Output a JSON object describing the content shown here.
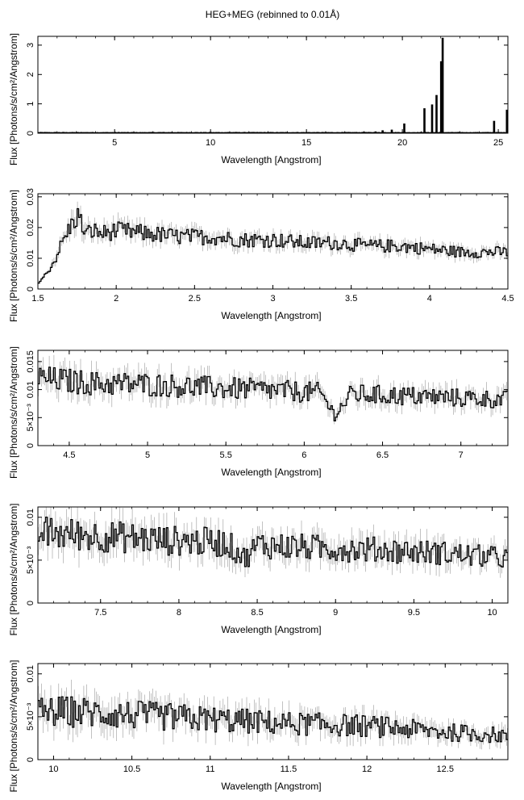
{
  "figure_title": "HEG+MEG (rebinned to 0.01Å)",
  "chart_data": [
    {
      "type": "line",
      "title": "HEG+MEG (rebinned to 0.01Å)",
      "xlabel": "Wavelength [Angstrom]",
      "ylabel": "Flux [Photons/s/cm²/Angstrom]",
      "xlim": [
        1.0,
        25.5
      ],
      "ylim": [
        0,
        3.3
      ],
      "xticks": [
        "5",
        "10",
        "15",
        "20",
        "25"
      ],
      "yticks": [
        "0",
        "1",
        "2",
        "3"
      ],
      "xtick_values": [
        5,
        10,
        15,
        20,
        25
      ],
      "ytick_values": [
        0,
        1,
        2,
        3
      ],
      "series": [
        {
          "style": "histogram with error bars",
          "points": [
            [
              1.0,
              0.02
            ],
            [
              2.0,
              0.02
            ],
            [
              3.0,
              0.02
            ],
            [
              4.0,
              0.015
            ],
            [
              5.0,
              0.012
            ],
            [
              6.0,
              0.01
            ],
            [
              7.0,
              0.009
            ],
            [
              8.0,
              0.008
            ],
            [
              9.0,
              0.007
            ],
            [
              10.0,
              0.006
            ],
            [
              11.0,
              0.006
            ],
            [
              12.0,
              0.007
            ],
            [
              13.0,
              0.006
            ],
            [
              14.0,
              0.008
            ],
            [
              15.0,
              0.008
            ],
            [
              16.0,
              0.01
            ],
            [
              17.0,
              0.012
            ],
            [
              18.0,
              0.02
            ],
            [
              18.97,
              0.06
            ],
            [
              19.45,
              0.11
            ],
            [
              20.0,
              0.08
            ],
            [
              20.1,
              0.33
            ],
            [
              21.0,
              0.05
            ],
            [
              21.2,
              0.85
            ],
            [
              21.6,
              0.98
            ],
            [
              21.8,
              1.3
            ],
            [
              22.0,
              2.45
            ],
            [
              22.1,
              3.25
            ],
            [
              23.0,
              0.06
            ],
            [
              24.0,
              0.05
            ],
            [
              24.78,
              0.42
            ],
            [
              25.5,
              0.8
            ]
          ]
        }
      ]
    },
    {
      "type": "line",
      "xlabel": "Wavelength [Angstrom]",
      "ylabel": "Flux [Photons/s/cm²/Angstrom]",
      "xlim": [
        1.5,
        4.5
      ],
      "ylim": [
        0,
        0.031
      ],
      "xticks": [
        "1.5",
        "2",
        "2.5",
        "3",
        "3.5",
        "4",
        "4.5"
      ],
      "yticks": [
        "0",
        "0.01",
        "0.02",
        "0.03"
      ],
      "xtick_values": [
        1.5,
        2,
        2.5,
        3,
        3.5,
        4,
        4.5
      ],
      "ytick_values": [
        0,
        0.01,
        0.02,
        0.03
      ],
      "series": [
        {
          "style": "histogram with error bars",
          "points": [
            [
              1.5,
              0.002
            ],
            [
              1.55,
              0.005
            ],
            [
              1.6,
              0.009
            ],
            [
              1.65,
              0.015
            ],
            [
              1.7,
              0.02
            ],
            [
              1.75,
              0.024
            ],
            [
              1.8,
              0.018
            ],
            [
              1.85,
              0.019
            ],
            [
              1.9,
              0.018
            ],
            [
              2.0,
              0.019
            ],
            [
              2.2,
              0.018
            ],
            [
              2.4,
              0.017
            ],
            [
              2.6,
              0.017
            ],
            [
              2.8,
              0.016
            ],
            [
              3.0,
              0.016
            ],
            [
              3.2,
              0.015
            ],
            [
              3.4,
              0.015
            ],
            [
              3.6,
              0.014
            ],
            [
              3.8,
              0.014
            ],
            [
              4.0,
              0.013
            ],
            [
              4.2,
              0.012
            ],
            [
              4.4,
              0.012
            ],
            [
              4.5,
              0.012
            ]
          ]
        }
      ]
    },
    {
      "type": "line",
      "xlabel": "Wavelength [Angstrom]",
      "ylabel": "Flux [Photons/s/cm²/Angstrom]",
      "xlim": [
        4.3,
        7.3
      ],
      "ylim": [
        0,
        0.017
      ],
      "xticks": [
        "4.5",
        "5",
        "5.5",
        "6",
        "6.5",
        "7"
      ],
      "yticks": [
        "0",
        "5×10⁻³",
        "0.01",
        "0.015"
      ],
      "xtick_values": [
        4.5,
        5,
        5.5,
        6,
        6.5,
        7
      ],
      "ytick_values": [
        0,
        0.005,
        0.01,
        0.015
      ],
      "series": [
        {
          "style": "histogram with error bars",
          "points": [
            [
              4.3,
              0.012
            ],
            [
              4.5,
              0.0115
            ],
            [
              4.7,
              0.011
            ],
            [
              4.9,
              0.011
            ],
            [
              5.1,
              0.0108
            ],
            [
              5.3,
              0.0105
            ],
            [
              5.5,
              0.0102
            ],
            [
              5.7,
              0.01
            ],
            [
              5.9,
              0.0097
            ],
            [
              6.1,
              0.0094
            ],
            [
              6.19,
              0.0055
            ],
            [
              6.3,
              0.0092
            ],
            [
              6.5,
              0.009
            ],
            [
              6.7,
              0.0088
            ],
            [
              6.9,
              0.0086
            ],
            [
              7.1,
              0.0084
            ],
            [
              7.3,
              0.0082
            ]
          ]
        }
      ]
    },
    {
      "type": "line",
      "xlabel": "Wavelength [Angstrom]",
      "ylabel": "Flux [Photons/s/cm²/Angstrom]",
      "xlim": [
        7.1,
        10.1
      ],
      "ylim": [
        0,
        0.0112
      ],
      "xticks": [
        "7.5",
        "8",
        "8.5",
        "9",
        "9.5",
        "10"
      ],
      "yticks": [
        "0",
        "5×10⁻³",
        "0.01"
      ],
      "xtick_values": [
        7.5,
        8,
        8.5,
        9,
        9.5,
        10
      ],
      "ytick_values": [
        0,
        0.005,
        0.01
      ],
      "series": [
        {
          "style": "histogram with error bars",
          "points": [
            [
              7.1,
              0.0082
            ],
            [
              7.3,
              0.008
            ],
            [
              7.5,
              0.0078
            ],
            [
              7.7,
              0.0076
            ],
            [
              7.9,
              0.0073
            ],
            [
              8.1,
              0.0072
            ],
            [
              8.3,
              0.007
            ],
            [
              8.42,
              0.0052
            ],
            [
              8.5,
              0.0068
            ],
            [
              8.7,
              0.0066
            ],
            [
              8.9,
              0.0064
            ],
            [
              9.1,
              0.0063
            ],
            [
              9.3,
              0.0062
            ],
            [
              9.5,
              0.006
            ],
            [
              9.7,
              0.0058
            ],
            [
              9.9,
              0.0055
            ],
            [
              10.1,
              0.0052
            ]
          ]
        }
      ]
    },
    {
      "type": "line",
      "xlabel": "Wavelength [Angstrom]",
      "ylabel": "Flux [Photons/s/cm²/Angstrom]",
      "xlim": [
        9.9,
        12.9
      ],
      "ylim": [
        0,
        0.0112
      ],
      "xticks": [
        "10",
        "10.5",
        "11",
        "11.5",
        "12",
        "12.5"
      ],
      "yticks": [
        "0",
        "5×10⁻³",
        "0.01"
      ],
      "xtick_values": [
        10,
        10.5,
        11,
        11.5,
        12,
        12.5
      ],
      "ytick_values": [
        0,
        0.005,
        0.01
      ],
      "series": [
        {
          "style": "histogram with error bars",
          "points": [
            [
              9.9,
              0.0055
            ],
            [
              10.1,
              0.0056
            ],
            [
              10.3,
              0.0054
            ],
            [
              10.5,
              0.0052
            ],
            [
              10.7,
              0.005
            ],
            [
              10.9,
              0.0048
            ],
            [
              11.1,
              0.0046
            ],
            [
              11.3,
              0.0044
            ],
            [
              11.5,
              0.0042
            ],
            [
              11.7,
              0.0041
            ],
            [
              11.9,
              0.004
            ],
            [
              12.1,
              0.0038
            ],
            [
              12.3,
              0.0035
            ],
            [
              12.5,
              0.0032
            ],
            [
              12.7,
              0.003
            ],
            [
              12.9,
              0.0028
            ]
          ]
        }
      ]
    }
  ]
}
